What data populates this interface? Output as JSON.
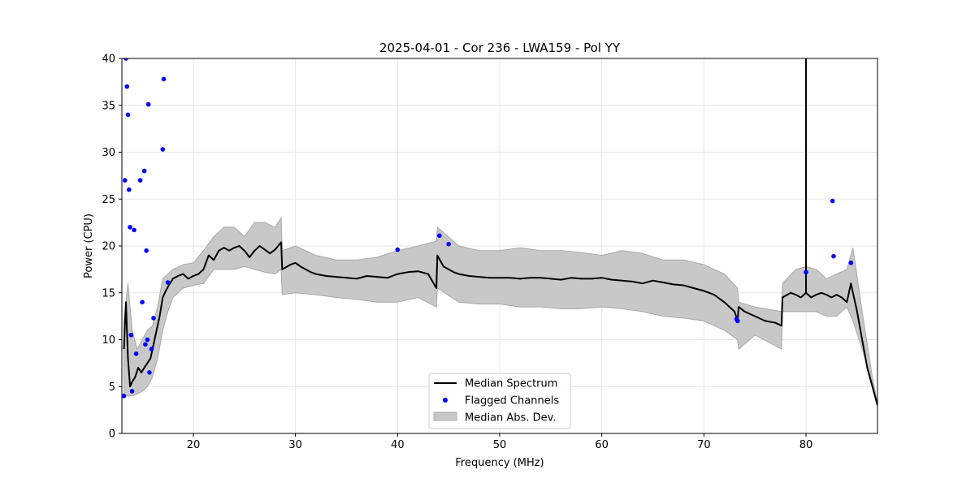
{
  "chart_data": {
    "type": "line",
    "title": "2025-04-01 - Cor 236 - LWA159 - Pol YY",
    "xlabel": "Frequency (MHz)",
    "ylabel": "Power (CPU)",
    "xlim": [
      13.0,
      87.0
    ],
    "ylim": [
      0,
      40
    ],
    "xticks": [
      20,
      30,
      40,
      50,
      60,
      70,
      80
    ],
    "yticks": [
      0,
      5,
      10,
      15,
      20,
      25,
      30,
      35,
      40
    ],
    "grid": true,
    "legend_position": "lower-center",
    "legend": [
      {
        "label": "Median Spectrum",
        "kind": "line",
        "color": "#000000"
      },
      {
        "label": "Flagged Channels",
        "kind": "point",
        "color": "#0000ff"
      },
      {
        "label": "Median Abs. Dev.",
        "kind": "band",
        "color": "#c8c8c8"
      }
    ],
    "series": [
      {
        "name": "Median Spectrum",
        "color": "#000000",
        "x": [
          13.2,
          13.4,
          13.6,
          13.8,
          14.0,
          14.3,
          14.6,
          14.9,
          15.2,
          15.5,
          15.8,
          16.1,
          16.4,
          16.7,
          17.0,
          17.3,
          17.6,
          18.0,
          18.5,
          19.0,
          19.5,
          20.0,
          20.5,
          21.0,
          21.5,
          22.0,
          22.5,
          23.0,
          23.5,
          24.0,
          24.5,
          25.0,
          25.5,
          26.0,
          26.5,
          27.0,
          27.5,
          28.0,
          28.6,
          28.7,
          29.5,
          30.0,
          30.5,
          31.0,
          31.5,
          32.0,
          33.0,
          34.0,
          35.0,
          36.0,
          37.0,
          38.0,
          39.0,
          40.0,
          41.0,
          42.0,
          43.0,
          43.8,
          43.9,
          44.5,
          45.0,
          45.5,
          46.0,
          47.0,
          48.0,
          49.0,
          50.0,
          51.0,
          52.0,
          53.0,
          54.0,
          55.0,
          56.0,
          57.0,
          58.0,
          59.0,
          60.0,
          61.0,
          62.0,
          63.0,
          64.0,
          65.0,
          66.0,
          67.0,
          68.0,
          69.0,
          70.0,
          71.0,
          72.0,
          73.0,
          73.3,
          73.4,
          74.0,
          75.0,
          76.0,
          77.0,
          77.6,
          77.7,
          78.5,
          79.0,
          79.5,
          80.0,
          80.5,
          81.0,
          81.5,
          82.0,
          82.5,
          83.0,
          83.5,
          84.0,
          84.4,
          84.6,
          85.0,
          85.5,
          86.0,
          86.5,
          87.0
        ],
        "y": [
          9.0,
          14.0,
          8.0,
          5.0,
          5.5,
          6.0,
          7.0,
          6.5,
          7.0,
          7.5,
          8.0,
          9.5,
          11.0,
          12.5,
          14.5,
          15.2,
          15.8,
          16.5,
          16.8,
          17.0,
          16.5,
          16.8,
          17.0,
          17.5,
          19.0,
          18.5,
          19.5,
          19.8,
          19.5,
          19.8,
          20.0,
          19.5,
          18.8,
          19.5,
          20.0,
          19.6,
          19.2,
          19.6,
          20.4,
          17.5,
          18.0,
          18.2,
          17.8,
          17.5,
          17.2,
          17.0,
          16.8,
          16.7,
          16.6,
          16.5,
          16.8,
          16.7,
          16.6,
          17.0,
          17.2,
          17.3,
          17.0,
          15.5,
          19.0,
          17.8,
          17.5,
          17.2,
          17.0,
          16.8,
          16.7,
          16.6,
          16.6,
          16.6,
          16.5,
          16.6,
          16.6,
          16.5,
          16.4,
          16.6,
          16.5,
          16.5,
          16.6,
          16.4,
          16.3,
          16.2,
          16.0,
          16.3,
          16.1,
          15.9,
          15.8,
          15.5,
          15.2,
          14.8,
          14.0,
          13.0,
          12.0,
          13.5,
          13.0,
          12.5,
          12.0,
          11.8,
          11.5,
          14.5,
          15.0,
          14.8,
          14.5,
          15.0,
          14.5,
          14.8,
          15.0,
          14.8,
          14.5,
          14.8,
          14.5,
          14.0,
          16.0,
          15.0,
          13.0,
          10.0,
          7.0,
          5.0,
          3.0
        ]
      },
      {
        "name": "Median Abs. Dev.",
        "color": "#c8c8c8",
        "x": [
          13.2,
          13.6,
          14.0,
          14.5,
          15.0,
          15.5,
          16.0,
          16.5,
          17.0,
          17.5,
          18.0,
          19.0,
          20.0,
          21.0,
          22.0,
          23.0,
          24.0,
          25.0,
          26.0,
          27.0,
          28.0,
          28.6,
          28.7,
          30.0,
          32.0,
          34.0,
          36.0,
          38.0,
          40.0,
          42.0,
          43.8,
          43.9,
          46.0,
          48.0,
          50.0,
          52.0,
          54.0,
          56.0,
          58.0,
          60.0,
          62.0,
          64.0,
          66.0,
          68.0,
          70.0,
          72.0,
          73.3,
          73.4,
          75.0,
          77.6,
          77.7,
          79.0,
          80.0,
          81.0,
          82.0,
          83.0,
          84.0,
          84.6,
          85.5,
          86.5,
          87.0
        ],
        "upper": [
          12.0,
          16.0,
          11.0,
          9.0,
          10.0,
          11.0,
          11.5,
          13.5,
          16.5,
          17.0,
          17.5,
          18.0,
          18.2,
          19.5,
          21.0,
          22.0,
          22.0,
          21.0,
          22.5,
          22.5,
          22.0,
          23.0,
          19.5,
          20.0,
          19.0,
          18.5,
          18.5,
          18.8,
          19.5,
          20.0,
          20.5,
          22.0,
          20.0,
          19.5,
          19.5,
          19.8,
          19.5,
          19.5,
          19.3,
          19.0,
          19.5,
          19.2,
          18.5,
          18.5,
          18.0,
          17.0,
          15.5,
          14.0,
          13.5,
          13.0,
          16.0,
          17.5,
          17.8,
          17.5,
          16.5,
          17.0,
          17.5,
          19.8,
          13.0,
          6.0,
          3.2
        ],
        "lower": [
          4.0,
          4.0,
          4.0,
          4.2,
          4.5,
          5.0,
          6.0,
          8.0,
          11.0,
          13.0,
          14.5,
          15.5,
          15.8,
          16.0,
          17.5,
          17.5,
          17.5,
          17.8,
          17.5,
          17.2,
          17.0,
          17.5,
          14.8,
          15.0,
          14.8,
          14.5,
          14.3,
          14.0,
          14.0,
          14.5,
          13.5,
          15.5,
          14.0,
          13.8,
          13.8,
          13.5,
          13.5,
          13.3,
          13.3,
          13.5,
          13.3,
          13.0,
          12.5,
          12.3,
          12.0,
          11.0,
          10.0,
          9.0,
          10.5,
          9.0,
          13.0,
          13.0,
          13.0,
          13.0,
          12.5,
          12.5,
          13.5,
          12.0,
          9.0,
          5.5,
          2.8
        ]
      },
      {
        "name": "Flagged Channels",
        "color": "#0000ff",
        "x": [
          13.2,
          13.3,
          13.4,
          13.5,
          13.6,
          13.7,
          13.8,
          13.9,
          14.0,
          14.2,
          14.4,
          14.8,
          15.0,
          15.2,
          15.3,
          15.4,
          15.5,
          15.6,
          15.7,
          15.9,
          16.1,
          17.0,
          17.1,
          17.5,
          40.0,
          44.1,
          45.0,
          73.2,
          73.3,
          80.0,
          82.6,
          82.7,
          84.4
        ],
        "y": [
          4.0,
          27.0,
          40.0,
          37.0,
          34.0,
          26.0,
          22.0,
          10.5,
          4.5,
          21.7,
          8.5,
          27.0,
          14.0,
          28.0,
          9.5,
          19.5,
          10.0,
          35.1,
          6.5,
          9.0,
          12.3,
          30.3,
          37.8,
          16.1,
          19.6,
          21.1,
          20.2,
          12.2,
          12.0,
          17.2,
          24.8,
          18.9,
          18.2
        ]
      }
    ],
    "spikes": [
      {
        "x": 80.0,
        "to": 40.0
      }
    ]
  }
}
